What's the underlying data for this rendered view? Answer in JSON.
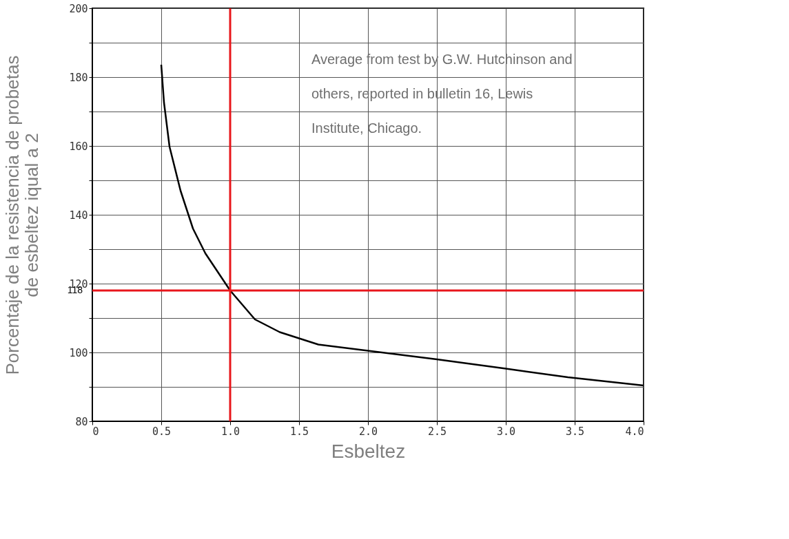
{
  "chart_data": {
    "type": "line",
    "xlabel": "Esbeltez",
    "ylabel": "Porcentaje de la resistencia de probetas\nde esbeltez iqual a 2",
    "x": [
      0.5,
      0.52,
      0.56,
      0.64,
      0.73,
      0.82,
      1.0,
      1.18,
      1.36,
      1.64,
      2.0,
      2.5,
      3.0,
      3.45,
      4.0
    ],
    "series": [
      {
        "color": "#000000",
        "values": [
          183.6,
          172.6,
          159.8,
          147,
          136,
          128.8,
          118,
          109.6,
          105.9,
          102.3,
          100.5,
          98,
          95.3,
          92.8,
          90.4
        ]
      }
    ],
    "xlim": [
      0,
      4
    ],
    "ylim": [
      80,
      200
    ],
    "xticks": [
      0,
      0.5,
      {
        "value": 1,
        "label": "1.0"
      },
      1.5,
      {
        "value": 2,
        "label": "2.0"
      },
      2.5,
      {
        "value": 3,
        "label": "3.0"
      },
      3.5,
      {
        "value": 4,
        "label": "4.0"
      }
    ],
    "yticks": [
      80,
      {
        "value": 90,
        "label": null
      },
      100,
      {
        "value": 110,
        "label": null
      },
      120,
      {
        "value": 130,
        "label": null
      },
      140,
      {
        "value": 150,
        "label": null
      },
      160,
      {
        "value": 170,
        "label": null
      },
      180,
      {
        "value": 190,
        "label": null
      },
      200
    ],
    "ref_lines": [
      {
        "axis": "x",
        "value": 1.0,
        "color": "#e8161b"
      },
      {
        "axis": "y",
        "value": 118,
        "label": "118",
        "color": "#e8161b"
      }
    ],
    "annotations": [
      "Average from test by G.W. Hutchinson and others, reported in bulletin 16, Lewis Institute, Chicago."
    ],
    "grid": true,
    "marker": "none",
    "line_style": "solid"
  }
}
